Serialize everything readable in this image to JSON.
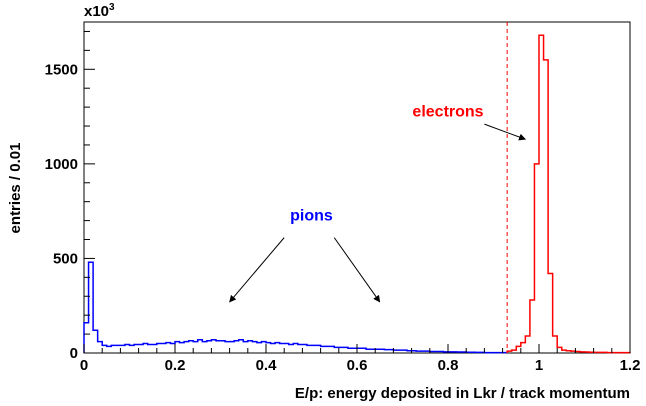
{
  "chart_data": {
    "type": "histogram",
    "title": "",
    "xlabel": "E/p: energy deposited in Lkr / track momentum",
    "ylabel": "entries / 0.01",
    "y_multiplier": "x10",
    "y_multiplier_exp": "3",
    "xlim": [
      0,
      1.2
    ],
    "ylim": [
      0,
      1750
    ],
    "bin_width": 0.01,
    "grid": false,
    "x_ticks": [
      0,
      0.2,
      0.4,
      0.6,
      0.8,
      1,
      1.2
    ],
    "x_tick_labels": [
      "0",
      "0.2",
      "0.4",
      "0.6",
      "0.8",
      "1",
      "1.2"
    ],
    "y_ticks": [
      0,
      500,
      1000,
      1500
    ],
    "y_tick_labels": [
      "0",
      "500",
      "1000",
      "1500"
    ],
    "series": [
      {
        "name": "pions",
        "color": "#0000ff",
        "x_start": 0,
        "values": [
          160,
          480,
          120,
          60,
          40,
          35,
          40,
          40,
          40,
          45,
          40,
          45,
          45,
          50,
          45,
          45,
          50,
          50,
          55,
          50,
          60,
          55,
          60,
          65,
          60,
          70,
          60,
          65,
          70,
          65,
          65,
          60,
          60,
          65,
          70,
          60,
          65,
          60,
          55,
          60,
          55,
          50,
          55,
          50,
          50,
          45,
          50,
          45,
          45,
          40,
          40,
          40,
          35,
          35,
          35,
          30,
          30,
          30,
          25,
          25,
          25,
          25,
          20,
          20,
          20,
          20,
          18,
          18,
          15,
          15,
          15,
          12,
          12,
          10,
          10,
          10,
          8,
          8,
          8,
          6,
          6,
          6,
          5,
          5,
          4,
          4,
          3,
          3,
          2,
          2,
          2,
          2,
          2
        ]
      },
      {
        "name": "electrons",
        "color": "#ff0000",
        "x_start": 0.93,
        "values": [
          10,
          15,
          35,
          55,
          90,
          280,
          1000,
          1680,
          1550,
          420,
          90,
          30,
          15,
          12,
          10,
          8,
          6,
          5,
          4,
          3,
          3,
          3,
          2,
          2,
          2,
          2,
          2
        ]
      }
    ],
    "cut_line": {
      "x": 0.93,
      "color": "#ff0000",
      "style": "dashed"
    },
    "annotations": [
      {
        "text": "pions",
        "color": "#0000ff",
        "x": 0.5,
        "y": 700,
        "arrows_to": [
          [
            0.32,
            270
          ],
          [
            0.65,
            270
          ]
        ],
        "arrows_from": [
          [
            0.44,
            610
          ],
          [
            0.55,
            610
          ]
        ]
      },
      {
        "text": "electrons",
        "color": "#ff0000",
        "x": 0.8,
        "y": 1250,
        "arrows_to": [
          [
            0.97,
            1130
          ]
        ],
        "arrows_from": [
          [
            0.88,
            1210
          ]
        ]
      }
    ]
  }
}
